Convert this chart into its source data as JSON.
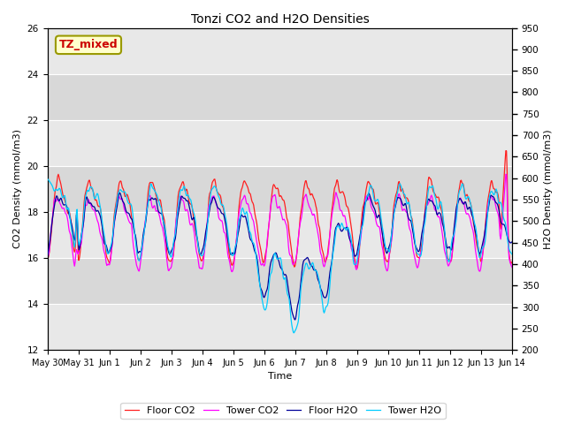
{
  "title": "Tonzi CO2 and H2O Densities",
  "xlabel": "Time",
  "ylabel_left": "CO2 Density (mmol/m3)",
  "ylabel_right": "H2O Density (mmol/m3)",
  "ylim_left": [
    12,
    26
  ],
  "ylim_right": [
    200,
    950
  ],
  "annotation_text": "TZ_mixed",
  "annotation_color": "#cc0000",
  "annotation_bg": "#ffffcc",
  "annotation_border": "#999900",
  "colors": {
    "floor_co2": "#ff2020",
    "tower_co2": "#ff00ff",
    "floor_h2o": "#000099",
    "tower_h2o": "#00ccff"
  },
  "legend_labels": [
    "Floor CO2",
    "Tower CO2",
    "Floor H2O",
    "Tower H2O"
  ],
  "x_tick_labels": [
    "May 30",
    "May 31",
    "Jun 1",
    "Jun 2",
    "Jun 3",
    "Jun 4",
    "Jun 5",
    "Jun 6",
    "Jun 7",
    "Jun 8",
    "Jun 9",
    "Jun 10",
    "Jun 11",
    "Jun 12",
    "Jun 13",
    "Jun 14"
  ],
  "band_colors": [
    "#e8e8e8",
    "#d8d8d8"
  ],
  "yticks_left": [
    12,
    14,
    16,
    18,
    20,
    22,
    24,
    26
  ],
  "yticks_right": [
    200,
    250,
    300,
    350,
    400,
    450,
    500,
    550,
    600,
    650,
    700,
    750,
    800,
    850,
    900,
    950
  ]
}
